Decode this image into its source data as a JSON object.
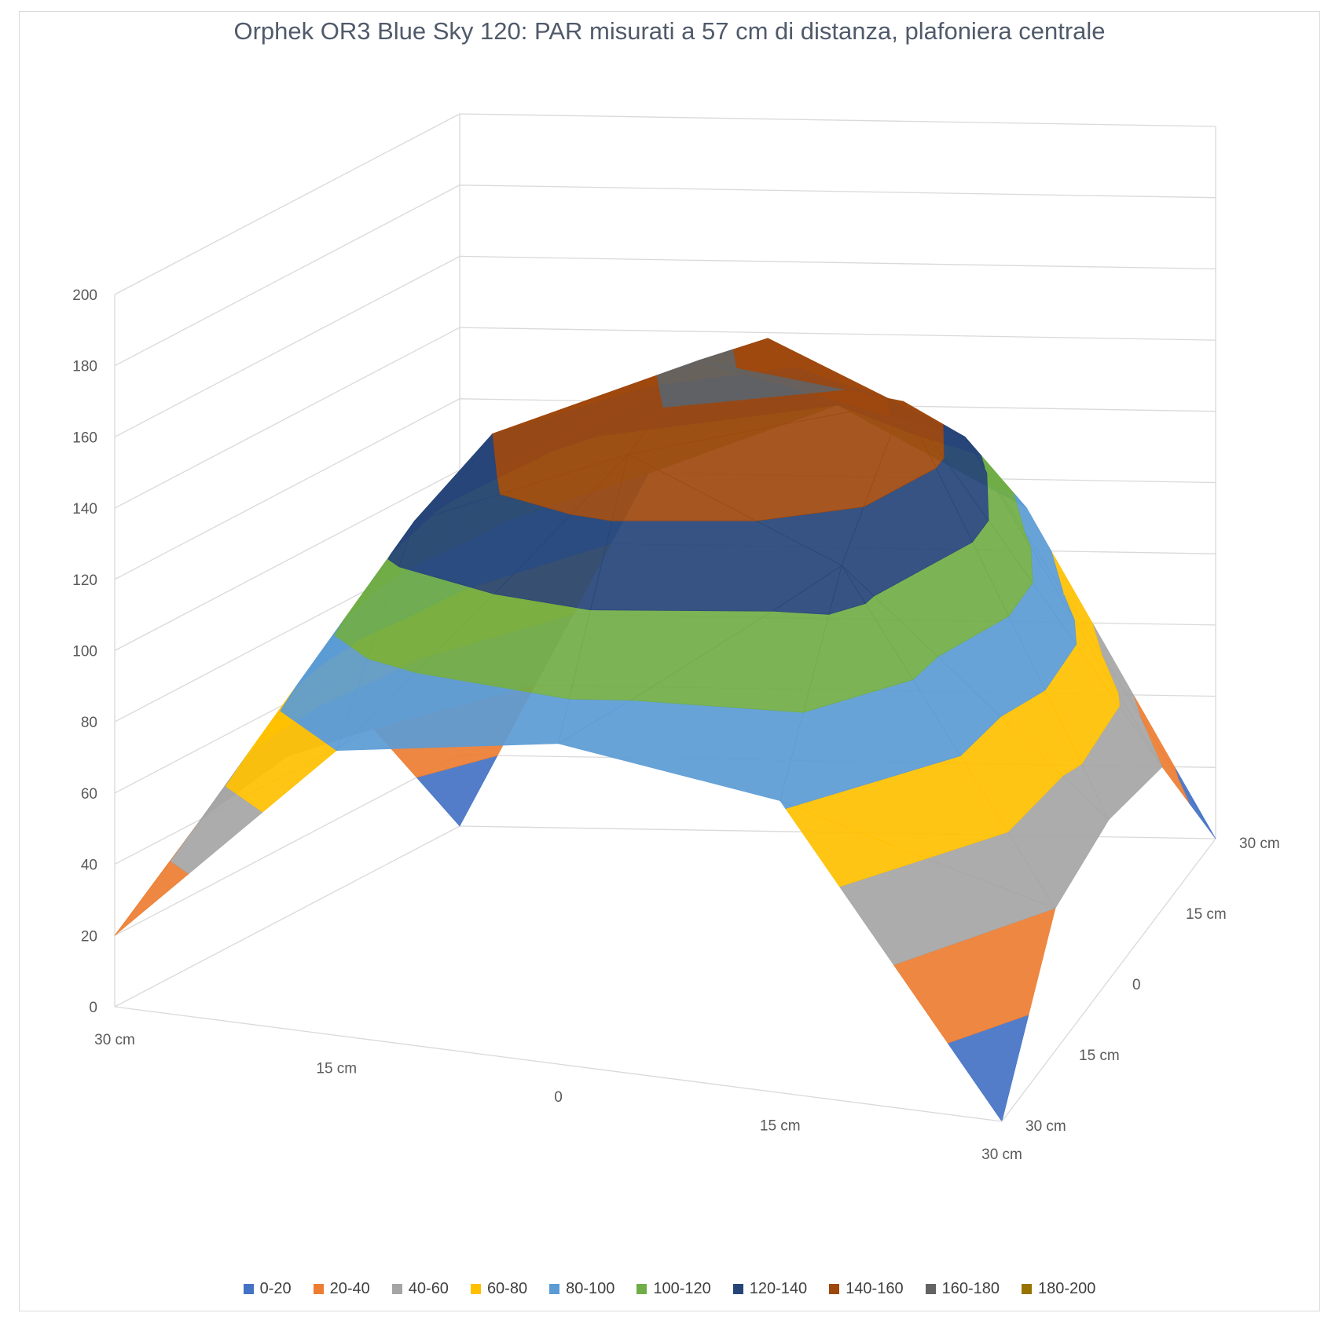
{
  "chart_data": {
    "type": "surface",
    "title": "Orphek OR3 Blue Sky 120: PAR misurati a 57 cm di distanza, plafoniera centrale",
    "x_categories": [
      "30 cm",
      "15 cm",
      "0",
      "15 cm",
      "30 cm"
    ],
    "y_categories": [
      "30 cm",
      "15 cm",
      "0",
      "15 cm",
      "30 cm"
    ],
    "z_ticks": [
      "0",
      "20",
      "40",
      "60",
      "80",
      "100",
      "120",
      "140",
      "160",
      "180",
      "200"
    ],
    "zlim": [
      0,
      200
    ],
    "values": [
      [
        20,
        80,
        90,
        82,
        0
      ],
      [
        40,
        130,
        155,
        130,
        40
      ],
      [
        45,
        140,
        165,
        158,
        45
      ],
      [
        40,
        130,
        155,
        130,
        40
      ],
      [
        0,
        100,
        120,
        92,
        0
      ]
    ],
    "legend": {
      "placement": "bottom",
      "bands": [
        {
          "label": "0-20",
          "color": "#4472c4"
        },
        {
          "label": "20-40",
          "color": "#ed7d31"
        },
        {
          "label": "40-60",
          "color": "#a5a5a5"
        },
        {
          "label": "60-80",
          "color": "#ffc000"
        },
        {
          "label": "80-100",
          "color": "#5b9bd5"
        },
        {
          "label": "100-120",
          "color": "#70ad47"
        },
        {
          "label": "120-140",
          "color": "#264478"
        },
        {
          "label": "140-160",
          "color": "#9e480e"
        },
        {
          "label": "160-180",
          "color": "#636363"
        },
        {
          "label": "180-200",
          "color": "#997300"
        }
      ]
    }
  }
}
